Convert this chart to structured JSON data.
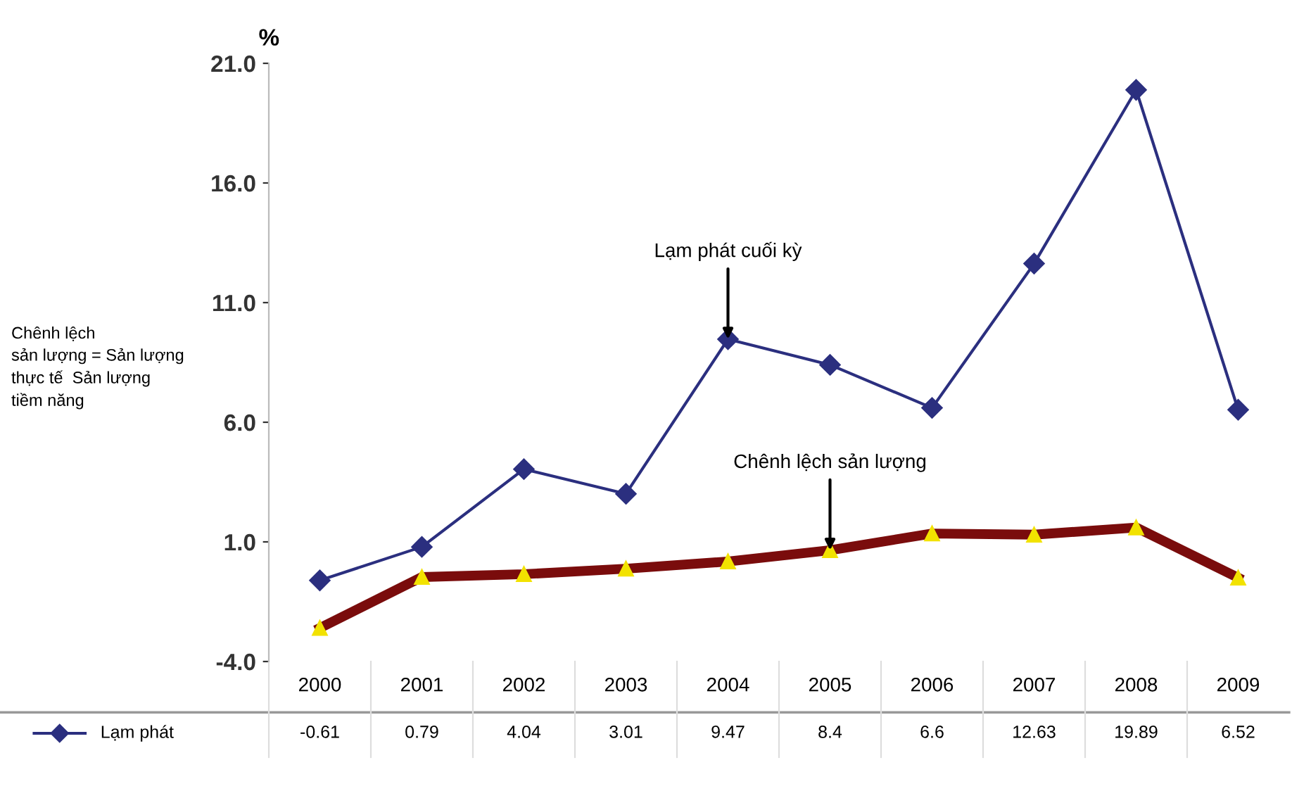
{
  "chart_data": {
    "type": "line",
    "ylabel": "%",
    "categories": [
      "2000",
      "2001",
      "2002",
      "2003",
      "2004",
      "2005",
      "2006",
      "2007",
      "2008",
      "2009"
    ],
    "series": [
      {
        "name": "Lạm phát",
        "color": "#2b2f7f",
        "marker": "diamond",
        "values": [
          -0.61,
          0.79,
          4.04,
          3.01,
          9.47,
          8.4,
          6.6,
          12.63,
          19.89,
          6.52
        ],
        "value_labels": [
          "-0.61",
          "0.79",
          "4.04",
          "3.01",
          "9.47",
          "8.4",
          "6.6",
          "12.63",
          "19.89",
          "6.52"
        ]
      },
      {
        "color": "#7a0c0c",
        "marker": "triangle",
        "values": [
          -2.6,
          -0.47,
          -0.35,
          -0.12,
          0.18,
          0.65,
          1.35,
          1.3,
          1.6,
          -0.5
        ]
      }
    ],
    "ylim": [
      -4,
      21
    ],
    "yticks": [
      {
        "value": -4,
        "label": "-4.0"
      },
      {
        "value": 1,
        "label": "1.0"
      },
      {
        "value": 6,
        "label": "6.0"
      },
      {
        "value": 11,
        "label": "11.0"
      },
      {
        "value": 16,
        "label": "16.0"
      },
      {
        "value": 21,
        "label": "21.0"
      }
    ],
    "grid": false,
    "legend": "bottom left",
    "annotations": [
      {
        "text": "Lạm phát cuối kỳ",
        "x": "2004",
        "y": 9.47
      },
      {
        "text": "Chênh lệch sản lượng",
        "x": "2005",
        "y": 0.65
      },
      "Chênh lệch\nsản lượng = Sản lượng\nthực tế  Sản lượng\ntiềm năng"
    ]
  }
}
